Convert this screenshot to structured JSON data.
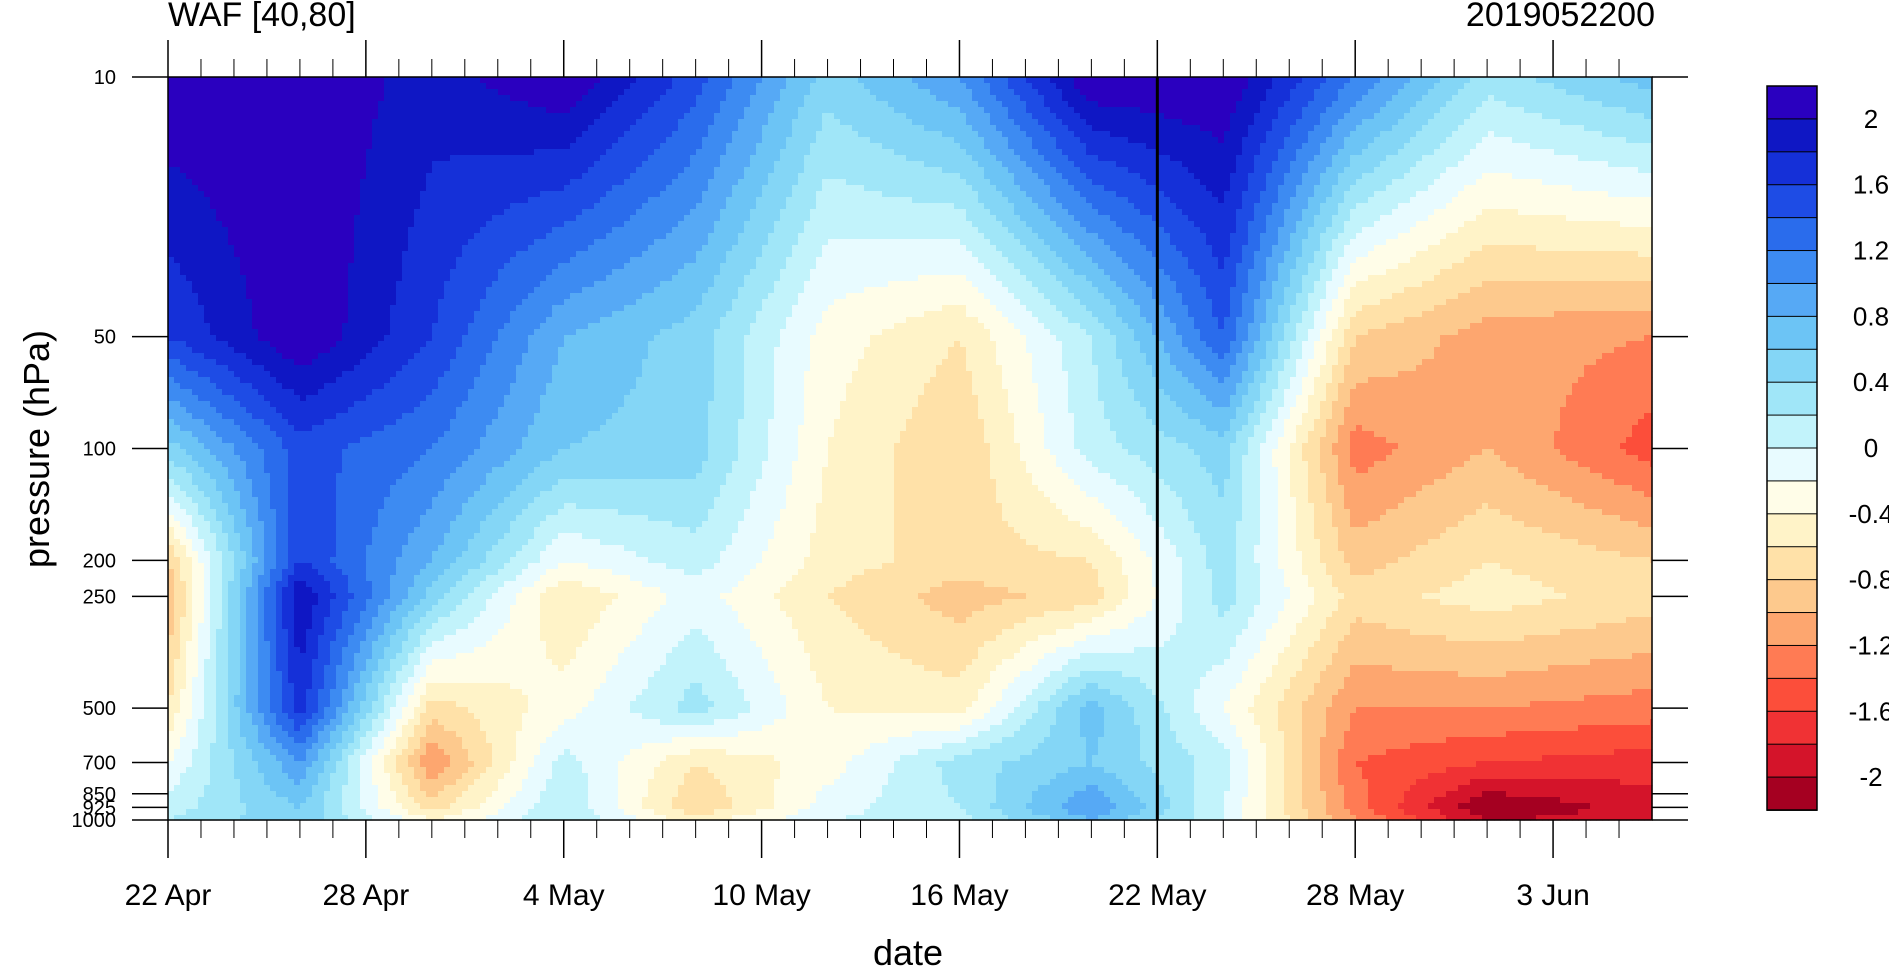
{
  "chart_data": {
    "type": "heatmap",
    "title": "WAF [40,80]",
    "subtitle": "2019052200",
    "xlabel": "date",
    "ylabel": "pressure (hPa)",
    "x_ticks": [
      "22 Apr",
      "28 Apr",
      "4 May",
      "10 May",
      "16 May",
      "22 May",
      "28 May",
      "3 Jun"
    ],
    "x_range": [
      "2019-04-22",
      "2019-06-06"
    ],
    "y_ticks": [
      10,
      50,
      100,
      200,
      250,
      500,
      700,
      850,
      925,
      1000
    ],
    "y_scale": "log",
    "y_range": [
      1000,
      10
    ],
    "marker_date": "2019-05-22",
    "colorbar": {
      "labels": [
        "2",
        "1.6",
        "1.2",
        "0.8",
        "0.4",
        "0",
        "-0.4",
        "-0.8",
        "-1.2",
        "-1.6",
        "-2"
      ],
      "levels": [
        -2.2,
        -2.0,
        -1.8,
        -1.6,
        -1.4,
        -1.2,
        -1.0,
        -0.8,
        -0.6,
        -0.4,
        -0.2,
        0,
        0.2,
        0.4,
        0.6,
        0.8,
        1.0,
        1.2,
        1.4,
        1.6,
        1.8,
        2.0,
        2.2
      ],
      "colors": [
        "#a50021",
        "#d4142a",
        "#f03234",
        "#fc4e3a",
        "#ff7b54",
        "#fda66f",
        "#fdc98d",
        "#ffe1a8",
        "#fff3c8",
        "#fffde8",
        "#e8fbff",
        "#c2f3fb",
        "#a0e6f8",
        "#84d6f6",
        "#6cc4f5",
        "#56a9f5",
        "#3d8bf2",
        "#2a6cec",
        "#1e4ce5",
        "#1530d8",
        "#0f17c4",
        "#2a00bf"
      ]
    },
    "grid": false,
    "field_grid": {
      "dates": [
        "2019-04-22",
        "2019-04-26",
        "2019-04-30",
        "2019-05-04",
        "2019-05-08",
        "2019-05-12",
        "2019-05-16",
        "2019-05-20",
        "2019-05-24",
        "2019-05-28",
        "2019-06-01",
        "2019-06-06"
      ],
      "levels_hPa": [
        10,
        50,
        100,
        200,
        250,
        500,
        700,
        925,
        1000
      ],
      "values": [
        [
          2.2,
          2.2,
          1.9,
          2.2,
          1.5,
          0.5,
          1.0,
          2.2,
          2.2,
          1.2,
          0.3,
          0.7
        ],
        [
          1.6,
          2.2,
          1.6,
          0.8,
          0.5,
          -0.3,
          -0.6,
          0.2,
          1.4,
          -0.8,
          -1.1,
          -1.2
        ],
        [
          0.5,
          1.5,
          1.2,
          0.6,
          0.5,
          -0.4,
          -0.8,
          0.1,
          0.5,
          -1.3,
          -1.0,
          -1.5
        ],
        [
          -0.8,
          1.6,
          0.8,
          -0.2,
          0.1,
          -0.5,
          -0.7,
          -0.6,
          0.3,
          -0.9,
          -0.6,
          -0.8
        ],
        [
          -1.0,
          2.0,
          0.5,
          -0.6,
          -0.1,
          -0.6,
          -0.9,
          -0.7,
          0.3,
          -0.7,
          -0.5,
          -0.7
        ],
        [
          -0.6,
          1.7,
          -0.7,
          -0.3,
          0.3,
          -0.4,
          -0.5,
          0.7,
          -0.2,
          -1.2,
          -1.2,
          -1.3
        ],
        [
          -0.2,
          1.0,
          -1.2,
          0.1,
          -0.6,
          -0.3,
          0.3,
          0.6,
          0.1,
          -1.4,
          -1.6,
          -1.7
        ],
        [
          0.1,
          0.6,
          -0.7,
          0.2,
          -0.8,
          -0.1,
          0.2,
          1.0,
          0.0,
          -1.3,
          -2.2,
          -1.9
        ],
        [
          0.2,
          0.6,
          -0.4,
          0.2,
          -0.5,
          0.0,
          0.1,
          0.8,
          0.0,
          -1.2,
          -2.0,
          -1.9
        ]
      ]
    }
  }
}
